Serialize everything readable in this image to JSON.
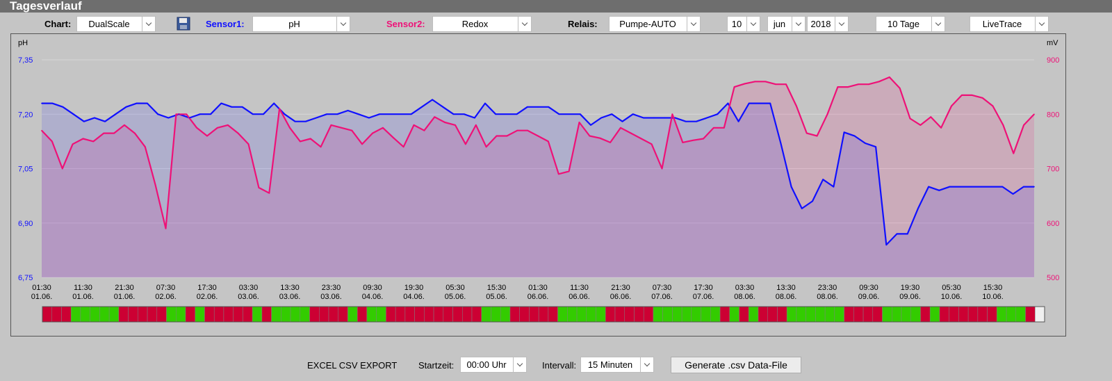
{
  "title": "Tagesverlauf",
  "toolbar": {
    "chart_label": "Chart:",
    "chart_value": "DualScale",
    "sensor1_label": "Sensor1:",
    "sensor1_value": "pH",
    "sensor2_label": "Sensor2:",
    "sensor2_value": "Redox",
    "relais_label": "Relais:",
    "relais_value": "Pumpe-AUTO",
    "day_value": "10",
    "month_value": "jun",
    "year_value": "2018",
    "range_value": "10 Tage",
    "mode_value": "LiveTrace"
  },
  "colors": {
    "sensor1": "#1010ff",
    "sensor2": "#ee1177",
    "relay_on": "#33cc00",
    "relay_off": "#cc0033"
  },
  "chart_data": {
    "type": "line",
    "left_axis": {
      "unit": "pH",
      "ticks": [
        "7,35",
        "7,20",
        "7,05",
        "6,90",
        "6,75"
      ],
      "range": [
        6.75,
        7.35
      ]
    },
    "right_axis": {
      "unit": "mV",
      "ticks": [
        "900",
        "800",
        "700",
        "600",
        "500"
      ],
      "range": [
        500,
        900
      ]
    },
    "x_ticks": [
      [
        "01:30",
        "01.06."
      ],
      [
        "11:30",
        "01.06."
      ],
      [
        "21:30",
        "01.06."
      ],
      [
        "07:30",
        "02.06."
      ],
      [
        "17:30",
        "02.06."
      ],
      [
        "03:30",
        "03.06."
      ],
      [
        "13:30",
        "03.06."
      ],
      [
        "23:30",
        "03.06."
      ],
      [
        "09:30",
        "04.06."
      ],
      [
        "19:30",
        "04.06."
      ],
      [
        "05:30",
        "05.06."
      ],
      [
        "15:30",
        "05.06."
      ],
      [
        "01:30",
        "06.06."
      ],
      [
        "11:30",
        "06.06."
      ],
      [
        "21:30",
        "06.06."
      ],
      [
        "07:30",
        "07.06."
      ],
      [
        "17:30",
        "07.06."
      ],
      [
        "03:30",
        "08.06."
      ],
      [
        "13:30",
        "08.06."
      ],
      [
        "23:30",
        "08.06."
      ],
      [
        "09:30",
        "09.06."
      ],
      [
        "19:30",
        "09.06."
      ],
      [
        "05:30",
        "10.06."
      ],
      [
        "15:30",
        "10.06."
      ]
    ],
    "series": [
      {
        "name": "pH",
        "axis": "left",
        "values": [
          7.23,
          7.23,
          7.22,
          7.2,
          7.18,
          7.19,
          7.18,
          7.2,
          7.22,
          7.23,
          7.23,
          7.2,
          7.19,
          7.2,
          7.19,
          7.2,
          7.2,
          7.23,
          7.22,
          7.22,
          7.2,
          7.2,
          7.23,
          7.2,
          7.18,
          7.18,
          7.19,
          7.2,
          7.2,
          7.21,
          7.2,
          7.19,
          7.2,
          7.2,
          7.2,
          7.2,
          7.22,
          7.24,
          7.22,
          7.2,
          7.2,
          7.19,
          7.23,
          7.2,
          7.2,
          7.2,
          7.22,
          7.22,
          7.22,
          7.2,
          7.2,
          7.2,
          7.17,
          7.19,
          7.2,
          7.18,
          7.2,
          7.19,
          7.19,
          7.19,
          7.19,
          7.18,
          7.18,
          7.19,
          7.2,
          7.23,
          7.18,
          7.23,
          7.23,
          7.23,
          7.12,
          7.0,
          6.94,
          6.96,
          7.02,
          7.0,
          7.15,
          7.14,
          7.12,
          7.11,
          6.84,
          6.87,
          6.87,
          6.94,
          7.0,
          6.99,
          7.0,
          7.0,
          7.0,
          7.0,
          7.0,
          7.0,
          6.98,
          7.0,
          7.0
        ]
      },
      {
        "name": "Redox",
        "axis": "right",
        "values": [
          770,
          750,
          700,
          745,
          755,
          750,
          765,
          765,
          780,
          765,
          740,
          670,
          590,
          800,
          800,
          775,
          760,
          775,
          780,
          765,
          745,
          665,
          655,
          810,
          775,
          750,
          755,
          740,
          780,
          775,
          770,
          745,
          765,
          775,
          757,
          740,
          780,
          770,
          795,
          785,
          780,
          745,
          780,
          740,
          760,
          760,
          770,
          770,
          760,
          750,
          690,
          695,
          785,
          760,
          756,
          748,
          775,
          765,
          755,
          745,
          700,
          800,
          748,
          752,
          755,
          775,
          775,
          850,
          856,
          860,
          860,
          855,
          855,
          815,
          765,
          760,
          800,
          850,
          850,
          855,
          855,
          860,
          868,
          848,
          792,
          780,
          795,
          775,
          815,
          835,
          835,
          830,
          815,
          780,
          728,
          780,
          800
        ]
      }
    ],
    "relay_states": [
      0,
      0,
      0,
      1,
      1,
      1,
      1,
      1,
      0,
      0,
      0,
      0,
      0,
      1,
      1,
      0,
      1,
      0,
      0,
      0,
      0,
      0,
      1,
      0,
      1,
      1,
      1,
      1,
      0,
      0,
      0,
      0,
      1,
      0,
      1,
      1,
      0,
      0,
      0,
      0,
      0,
      0,
      0,
      0,
      0,
      0,
      1,
      1,
      1,
      0,
      0,
      0,
      0,
      0,
      1,
      1,
      1,
      1,
      1,
      0,
      0,
      0,
      0,
      0,
      1,
      1,
      1,
      1,
      1,
      1,
      1,
      0,
      1,
      0,
      1,
      0,
      0,
      0,
      1,
      1,
      1,
      1,
      1,
      1,
      0,
      0,
      0,
      0,
      1,
      1,
      1,
      1,
      0,
      1,
      0,
      0,
      0,
      0,
      0,
      0,
      1,
      1,
      1,
      0,
      2
    ]
  },
  "footer": {
    "export_label": "EXCEL CSV EXPORT",
    "start_label": "Startzeit:",
    "start_value": "00:00 Uhr",
    "interval_label": "Intervall:",
    "interval_value": "15 Minuten",
    "generate_button": "Generate .csv Data-File"
  }
}
